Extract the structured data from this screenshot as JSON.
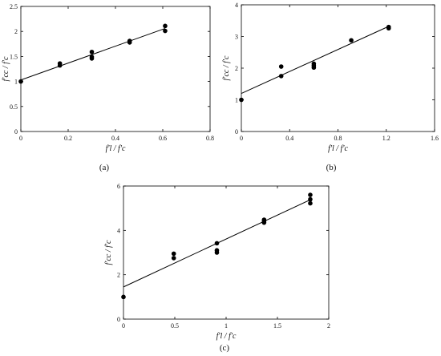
{
  "chart_data": [
    {
      "type": "scatter",
      "panel_label": "(a)",
      "xlabel": "f'l / f'c",
      "ylabel": "f'cc / f'c",
      "xlim": [
        0,
        0.8
      ],
      "ylim": [
        0,
        2.5
      ],
      "xticks": [
        "0",
        "0.2",
        "0.4",
        "0.6",
        "0.8"
      ],
      "yticks": [
        "0",
        "0.5",
        "1",
        "1.5",
        "2",
        "2.5"
      ],
      "points": [
        {
          "x": 0,
          "y": 1.0
        },
        {
          "x": 0.165,
          "y": 1.32
        },
        {
          "x": 0.165,
          "y": 1.36
        },
        {
          "x": 0.3,
          "y": 1.46
        },
        {
          "x": 0.3,
          "y": 1.49
        },
        {
          "x": 0.3,
          "y": 1.59
        },
        {
          "x": 0.46,
          "y": 1.78
        },
        {
          "x": 0.46,
          "y": 1.81
        },
        {
          "x": 0.61,
          "y": 2.01
        },
        {
          "x": 0.61,
          "y": 2.11
        }
      ],
      "fit_line": {
        "x": [
          0,
          0.61
        ],
        "y": [
          1.03,
          2.06
        ]
      }
    },
    {
      "type": "scatter",
      "panel_label": "(b)",
      "xlabel": "f'l / f'c",
      "ylabel": "f'cc / f'c",
      "xlim": [
        0,
        1.6
      ],
      "ylim": [
        0,
        4
      ],
      "xticks": [
        "0",
        "0.4",
        "0.8",
        "1.2",
        "1.6"
      ],
      "yticks": [
        "0",
        "1",
        "2",
        "3",
        "4"
      ],
      "points": [
        {
          "x": 0,
          "y": 1.0
        },
        {
          "x": 0.33,
          "y": 1.75
        },
        {
          "x": 0.33,
          "y": 2.05
        },
        {
          "x": 0.6,
          "y": 2.02
        },
        {
          "x": 0.6,
          "y": 2.08
        },
        {
          "x": 0.6,
          "y": 2.14
        },
        {
          "x": 0.91,
          "y": 2.88
        },
        {
          "x": 1.22,
          "y": 3.26
        },
        {
          "x": 1.22,
          "y": 3.3
        }
      ],
      "fit_line": {
        "x": [
          0,
          1.22
        ],
        "y": [
          1.2,
          3.32
        ]
      }
    },
    {
      "type": "scatter",
      "panel_label": "(c)",
      "xlabel": "f'l / f'c",
      "ylabel": "f'cc / f'c",
      "xlim": [
        0,
        2
      ],
      "ylim": [
        0,
        6
      ],
      "xticks": [
        "0",
        "0.5",
        "1",
        "1.5",
        "2"
      ],
      "yticks": [
        "0",
        "2",
        "4",
        "6"
      ],
      "points": [
        {
          "x": 0,
          "y": 1.0
        },
        {
          "x": 0.49,
          "y": 2.75
        },
        {
          "x": 0.49,
          "y": 2.95
        },
        {
          "x": 0.91,
          "y": 3.0
        },
        {
          "x": 0.91,
          "y": 3.1
        },
        {
          "x": 0.91,
          "y": 3.42
        },
        {
          "x": 1.37,
          "y": 4.35
        },
        {
          "x": 1.37,
          "y": 4.42
        },
        {
          "x": 1.37,
          "y": 4.48
        },
        {
          "x": 1.82,
          "y": 5.22
        },
        {
          "x": 1.82,
          "y": 5.4
        },
        {
          "x": 1.82,
          "y": 5.6
        }
      ],
      "fit_line": {
        "x": [
          0,
          1.82
        ],
        "y": [
          1.45,
          5.38
        ]
      }
    }
  ]
}
